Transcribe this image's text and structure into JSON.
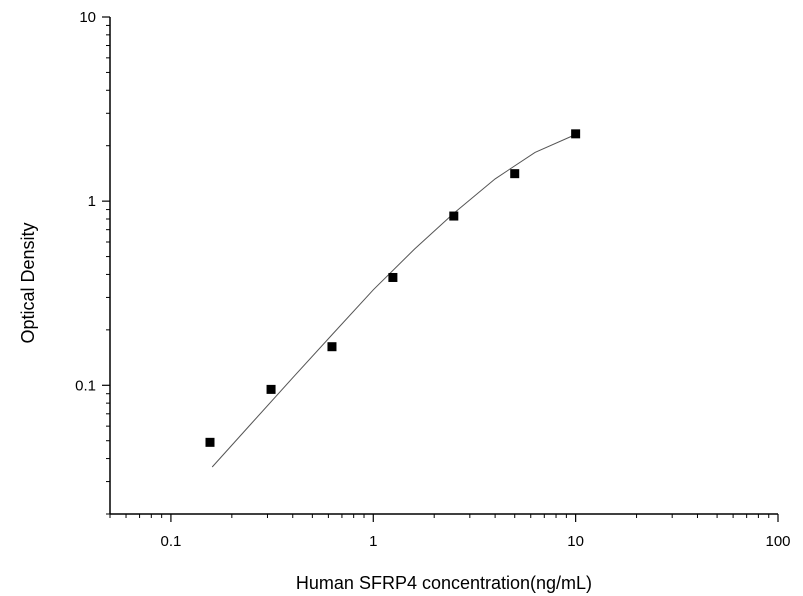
{
  "chart_data": {
    "type": "scatter",
    "xlabel": "Human SFRP4 concentration(ng/mL)",
    "ylabel": "Optical Density",
    "xscale": "log",
    "yscale": "log",
    "xlim": [
      0.05,
      100
    ],
    "ylim": [
      0.02,
      10
    ],
    "x_ticks": [
      0.1,
      1,
      10,
      100
    ],
    "x_tick_labels": [
      "0.1",
      "1",
      "10",
      "100"
    ],
    "y_ticks": [
      0.1,
      1,
      10
    ],
    "y_tick_labels": [
      "0.1",
      "1",
      "10"
    ],
    "grid": false,
    "series": [
      {
        "marker": "square",
        "color": "#000000",
        "x": [
          0.156,
          0.3125,
          0.625,
          1.25,
          2.5,
          5,
          10
        ],
        "y": [
          0.049,
          0.095,
          0.162,
          0.385,
          0.83,
          1.41,
          2.32
        ]
      }
    ],
    "fit_curve": {
      "color": "#555555",
      "x": [
        0.16,
        0.25,
        0.4,
        0.63,
        1.0,
        1.6,
        2.5,
        4.0,
        6.3,
        10
      ],
      "y": [
        0.036,
        0.062,
        0.11,
        0.19,
        0.33,
        0.55,
        0.86,
        1.32,
        1.84,
        2.3
      ]
    }
  }
}
